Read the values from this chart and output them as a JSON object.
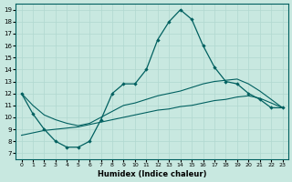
{
  "xlabel": "Humidex (Indice chaleur)",
  "xlim": [
    -0.5,
    23.5
  ],
  "ylim": [
    6.5,
    19.5
  ],
  "xticks": [
    0,
    1,
    2,
    3,
    4,
    5,
    6,
    7,
    8,
    9,
    10,
    11,
    12,
    13,
    14,
    15,
    16,
    17,
    18,
    19,
    20,
    21,
    22,
    23
  ],
  "yticks": [
    7,
    8,
    9,
    10,
    11,
    12,
    13,
    14,
    15,
    16,
    17,
    18,
    19
  ],
  "bg_color": "#c8e8e0",
  "line_color": "#006060",
  "grid_color": "#b0d8d0",
  "line_main": {
    "x": [
      0,
      1,
      2,
      3,
      4,
      5,
      6,
      7,
      8,
      9,
      10,
      11,
      12,
      13,
      14,
      15,
      16,
      17,
      18,
      19,
      20,
      21,
      22,
      23
    ],
    "y": [
      12,
      10.3,
      9,
      8,
      7.5,
      7.5,
      8,
      9.8,
      12,
      12.8,
      12.8,
      14,
      16.5,
      18,
      19,
      18.2,
      16,
      14.2,
      13,
      12.8,
      12,
      11.5,
      10.8,
      10.8
    ]
  },
  "line_upper": {
    "x": [
      0,
      1,
      2,
      3,
      4,
      5,
      6,
      7,
      8,
      9,
      10,
      11,
      12,
      13,
      14,
      15,
      16,
      17,
      18,
      19,
      20,
      21,
      22,
      23
    ],
    "y": [
      12,
      11,
      10.2,
      9.8,
      9.5,
      9.3,
      9.5,
      10.0,
      10.5,
      11.0,
      11.2,
      11.5,
      11.8,
      12.0,
      12.2,
      12.5,
      12.8,
      13.0,
      13.1,
      13.2,
      12.8,
      12.2,
      11.5,
      10.8
    ]
  },
  "line_lower": {
    "x": [
      0,
      1,
      2,
      3,
      4,
      5,
      6,
      7,
      8,
      9,
      10,
      11,
      12,
      13,
      14,
      15,
      16,
      17,
      18,
      19,
      20,
      21,
      22,
      23
    ],
    "y": [
      8.5,
      8.7,
      8.9,
      9.0,
      9.1,
      9.2,
      9.4,
      9.6,
      9.8,
      10.0,
      10.2,
      10.4,
      10.6,
      10.7,
      10.9,
      11.0,
      11.2,
      11.4,
      11.5,
      11.7,
      11.8,
      11.6,
      11.2,
      10.8
    ]
  }
}
